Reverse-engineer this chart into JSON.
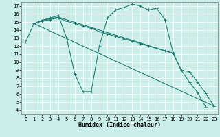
{
  "xlabel": "Humidex (Indice chaleur)",
  "bg_color": "#cceee8",
  "grid_color": "#ffffff",
  "line_color": "#1a7a6e",
  "xlim": [
    -0.5,
    23.5
  ],
  "ylim": [
    3.5,
    17.5
  ],
  "xticks": [
    0,
    1,
    2,
    3,
    4,
    5,
    6,
    7,
    8,
    9,
    10,
    11,
    12,
    13,
    14,
    15,
    16,
    17,
    18,
    19,
    20,
    21,
    22,
    23
  ],
  "yticks": [
    4,
    5,
    6,
    7,
    8,
    9,
    10,
    11,
    12,
    13,
    14,
    15,
    16,
    17
  ],
  "s1x": [
    0,
    1,
    2,
    3,
    4,
    5,
    6,
    7,
    8,
    9,
    10,
    11,
    12,
    13,
    14,
    15,
    16,
    17,
    18,
    19,
    20,
    21,
    22
  ],
  "s1y": [
    12.5,
    14.8,
    15.2,
    15.5,
    15.8,
    13.0,
    8.5,
    6.3,
    6.3,
    12.0,
    15.5,
    16.5,
    16.8,
    17.2,
    17.0,
    16.5,
    16.7,
    15.3,
    11.2,
    9.0,
    7.5,
    6.2,
    4.4
  ],
  "s2x": [
    1,
    2,
    3,
    4,
    5,
    6,
    7,
    8,
    9,
    10,
    11,
    12,
    13,
    14,
    15,
    16,
    17,
    18
  ],
  "s2y": [
    14.8,
    15.1,
    15.3,
    15.5,
    15.1,
    14.8,
    14.5,
    14.2,
    13.8,
    13.5,
    13.2,
    12.9,
    12.6,
    12.3,
    12.0,
    11.7,
    11.4,
    11.1
  ],
  "s3x": [
    1,
    2,
    3,
    4,
    18,
    19,
    20,
    21,
    22,
    23
  ],
  "s3y": [
    14.8,
    15.2,
    15.4,
    15.6,
    11.1,
    9.0,
    8.8,
    7.5,
    6.1,
    4.5
  ],
  "s4x": [
    1,
    23
  ],
  "s4y": [
    14.8,
    4.5
  ]
}
